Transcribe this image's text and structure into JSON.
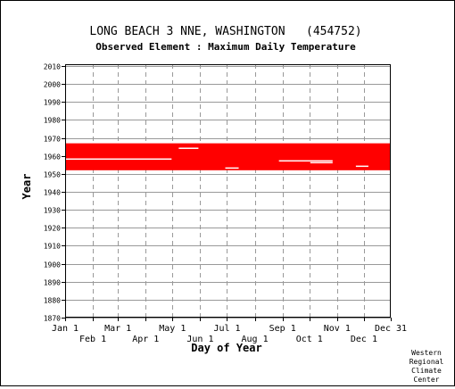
{
  "chart_data": {
    "type": "heatmap",
    "title": "LONG BEACH 3 NNE, WASHINGTON   (454752)",
    "subtitle": "Observed Element : Maximum Daily Temperature",
    "xlabel": "Day of Year",
    "ylabel": "Year",
    "x_ticks_top": [
      "Jan 1",
      "Mar 1",
      "May 1",
      "Jul 1",
      "Sep 1",
      "Nov 1",
      "Dec 31"
    ],
    "x_ticks_bottom": [
      "Feb 1",
      "Apr 1",
      "Jun 1",
      "Aug 1",
      "Oct 1",
      "Dec 1"
    ],
    "x_tick_days": [
      1,
      32,
      60,
      91,
      121,
      152,
      182,
      213,
      244,
      274,
      305,
      335,
      365
    ],
    "xlim": [
      1,
      365
    ],
    "ylim": [
      1870,
      2011
    ],
    "y_ticks": [
      1870,
      1880,
      1890,
      1900,
      1910,
      1920,
      1930,
      1940,
      1950,
      1960,
      1970,
      1980,
      1990,
      2000,
      2010
    ],
    "grid": true,
    "data_color": "#ff0000",
    "data_year_range": [
      1952,
      1966
    ],
    "data_gaps": [
      {
        "year": 1964,
        "day_start": 128,
        "day_end": 150
      },
      {
        "year": 1958,
        "day_start": 1,
        "day_end": 120
      },
      {
        "year": 1957,
        "day_start": 240,
        "day_end": 300
      },
      {
        "year": 1956,
        "day_start": 275,
        "day_end": 300
      },
      {
        "year": 1954,
        "day_start": 326,
        "day_end": 340
      },
      {
        "year": 1953,
        "day_start": 180,
        "day_end": 195
      }
    ]
  },
  "credit": [
    "Western",
    "Regional",
    "Climate",
    "Center"
  ]
}
